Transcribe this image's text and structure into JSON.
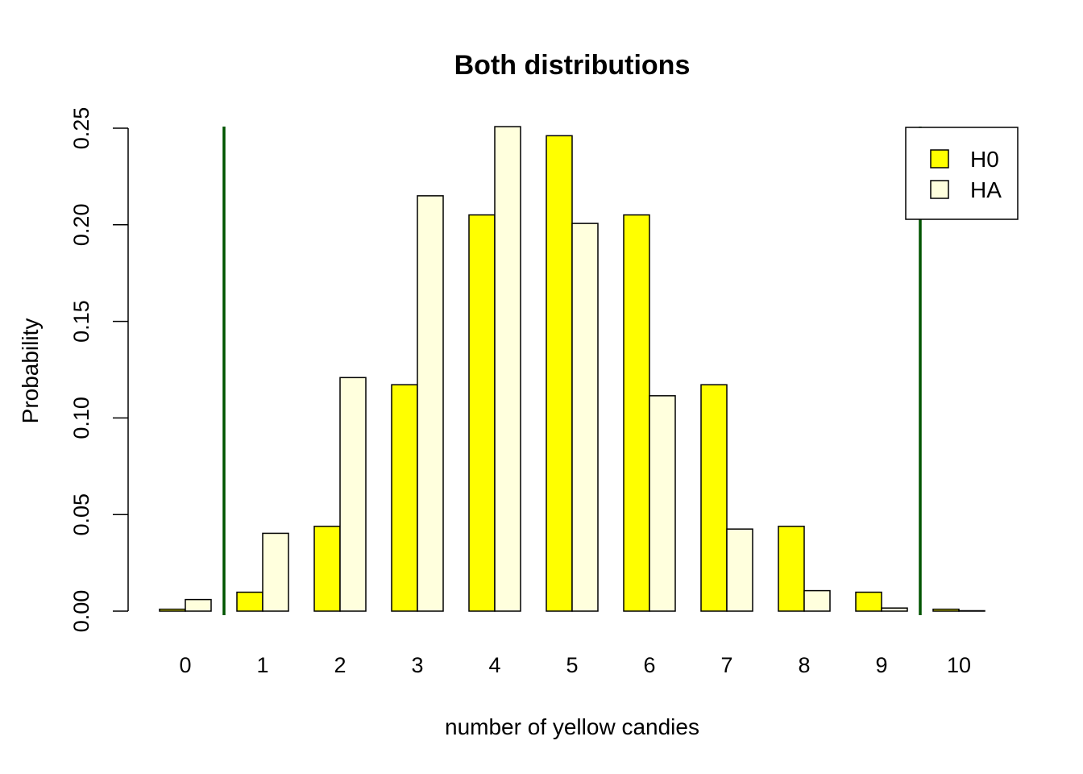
{
  "chart_data": {
    "type": "bar",
    "title": "Both distributions",
    "xlabel": "number of yellow candies",
    "ylabel": "Probability",
    "categories": [
      "0",
      "1",
      "2",
      "3",
      "4",
      "5",
      "6",
      "7",
      "8",
      "9",
      "10"
    ],
    "series": [
      {
        "name": "H0",
        "color": "#ffff00",
        "values": [
          0.001,
          0.0098,
          0.0439,
          0.1172,
          0.2051,
          0.2461,
          0.2051,
          0.1172,
          0.0439,
          0.0098,
          0.001
        ]
      },
      {
        "name": "HA",
        "color": "#ffffdd",
        "values": [
          0.006,
          0.0403,
          0.1209,
          0.215,
          0.2508,
          0.2007,
          0.1115,
          0.0425,
          0.0106,
          0.0016,
          0.0001
        ]
      }
    ],
    "yticks": [
      "0.00",
      "0.05",
      "0.10",
      "0.15",
      "0.20",
      "0.25"
    ],
    "ylim": [
      0,
      0.25
    ],
    "reference_lines": {
      "color": "#005500",
      "positions_between_categories": [
        [
          0,
          1
        ],
        [
          9,
          10
        ]
      ]
    },
    "grid": false,
    "legend_position": "top-right"
  }
}
